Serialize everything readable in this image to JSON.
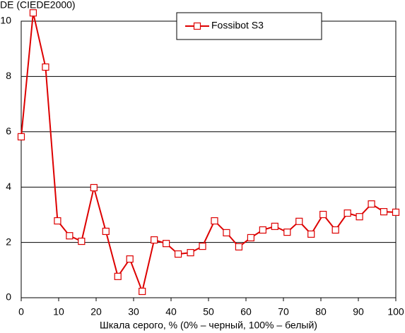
{
  "chart_data": {
    "type": "line",
    "y_label": "DE (CIEDE2000)",
    "x_label": "Шкала серого, % (0% – черный, 100% – белый)",
    "x": [
      0,
      3.2,
      6.5,
      9.7,
      12.9,
      16.1,
      19.4,
      22.6,
      25.8,
      29.0,
      32.3,
      35.5,
      38.7,
      41.9,
      45.2,
      48.4,
      51.6,
      54.8,
      58.1,
      61.3,
      64.5,
      67.7,
      71.0,
      74.2,
      77.4,
      80.6,
      83.9,
      87.1,
      90.3,
      93.5,
      96.8,
      100
    ],
    "series": [
      {
        "name": "Fossibot S3",
        "color": "#dd0000",
        "values": [
          5.82,
          10.3,
          8.34,
          2.78,
          2.24,
          2.04,
          3.98,
          2.4,
          0.77,
          1.4,
          0.23,
          2.09,
          1.96,
          1.58,
          1.63,
          1.86,
          2.78,
          2.35,
          1.84,
          2.17,
          2.45,
          2.58,
          2.37,
          2.76,
          2.3,
          3.01,
          2.45,
          3.06,
          2.93,
          3.39,
          3.11,
          3.09
        ]
      }
    ],
    "xlim": [
      0,
      100
    ],
    "xticks": [
      0,
      10,
      20,
      30,
      40,
      50,
      60,
      70,
      80,
      90,
      100
    ],
    "ylim": [
      0,
      10
    ],
    "yticks": [
      0,
      2,
      4,
      6,
      8,
      10
    ],
    "grid": true,
    "legend": "top"
  }
}
